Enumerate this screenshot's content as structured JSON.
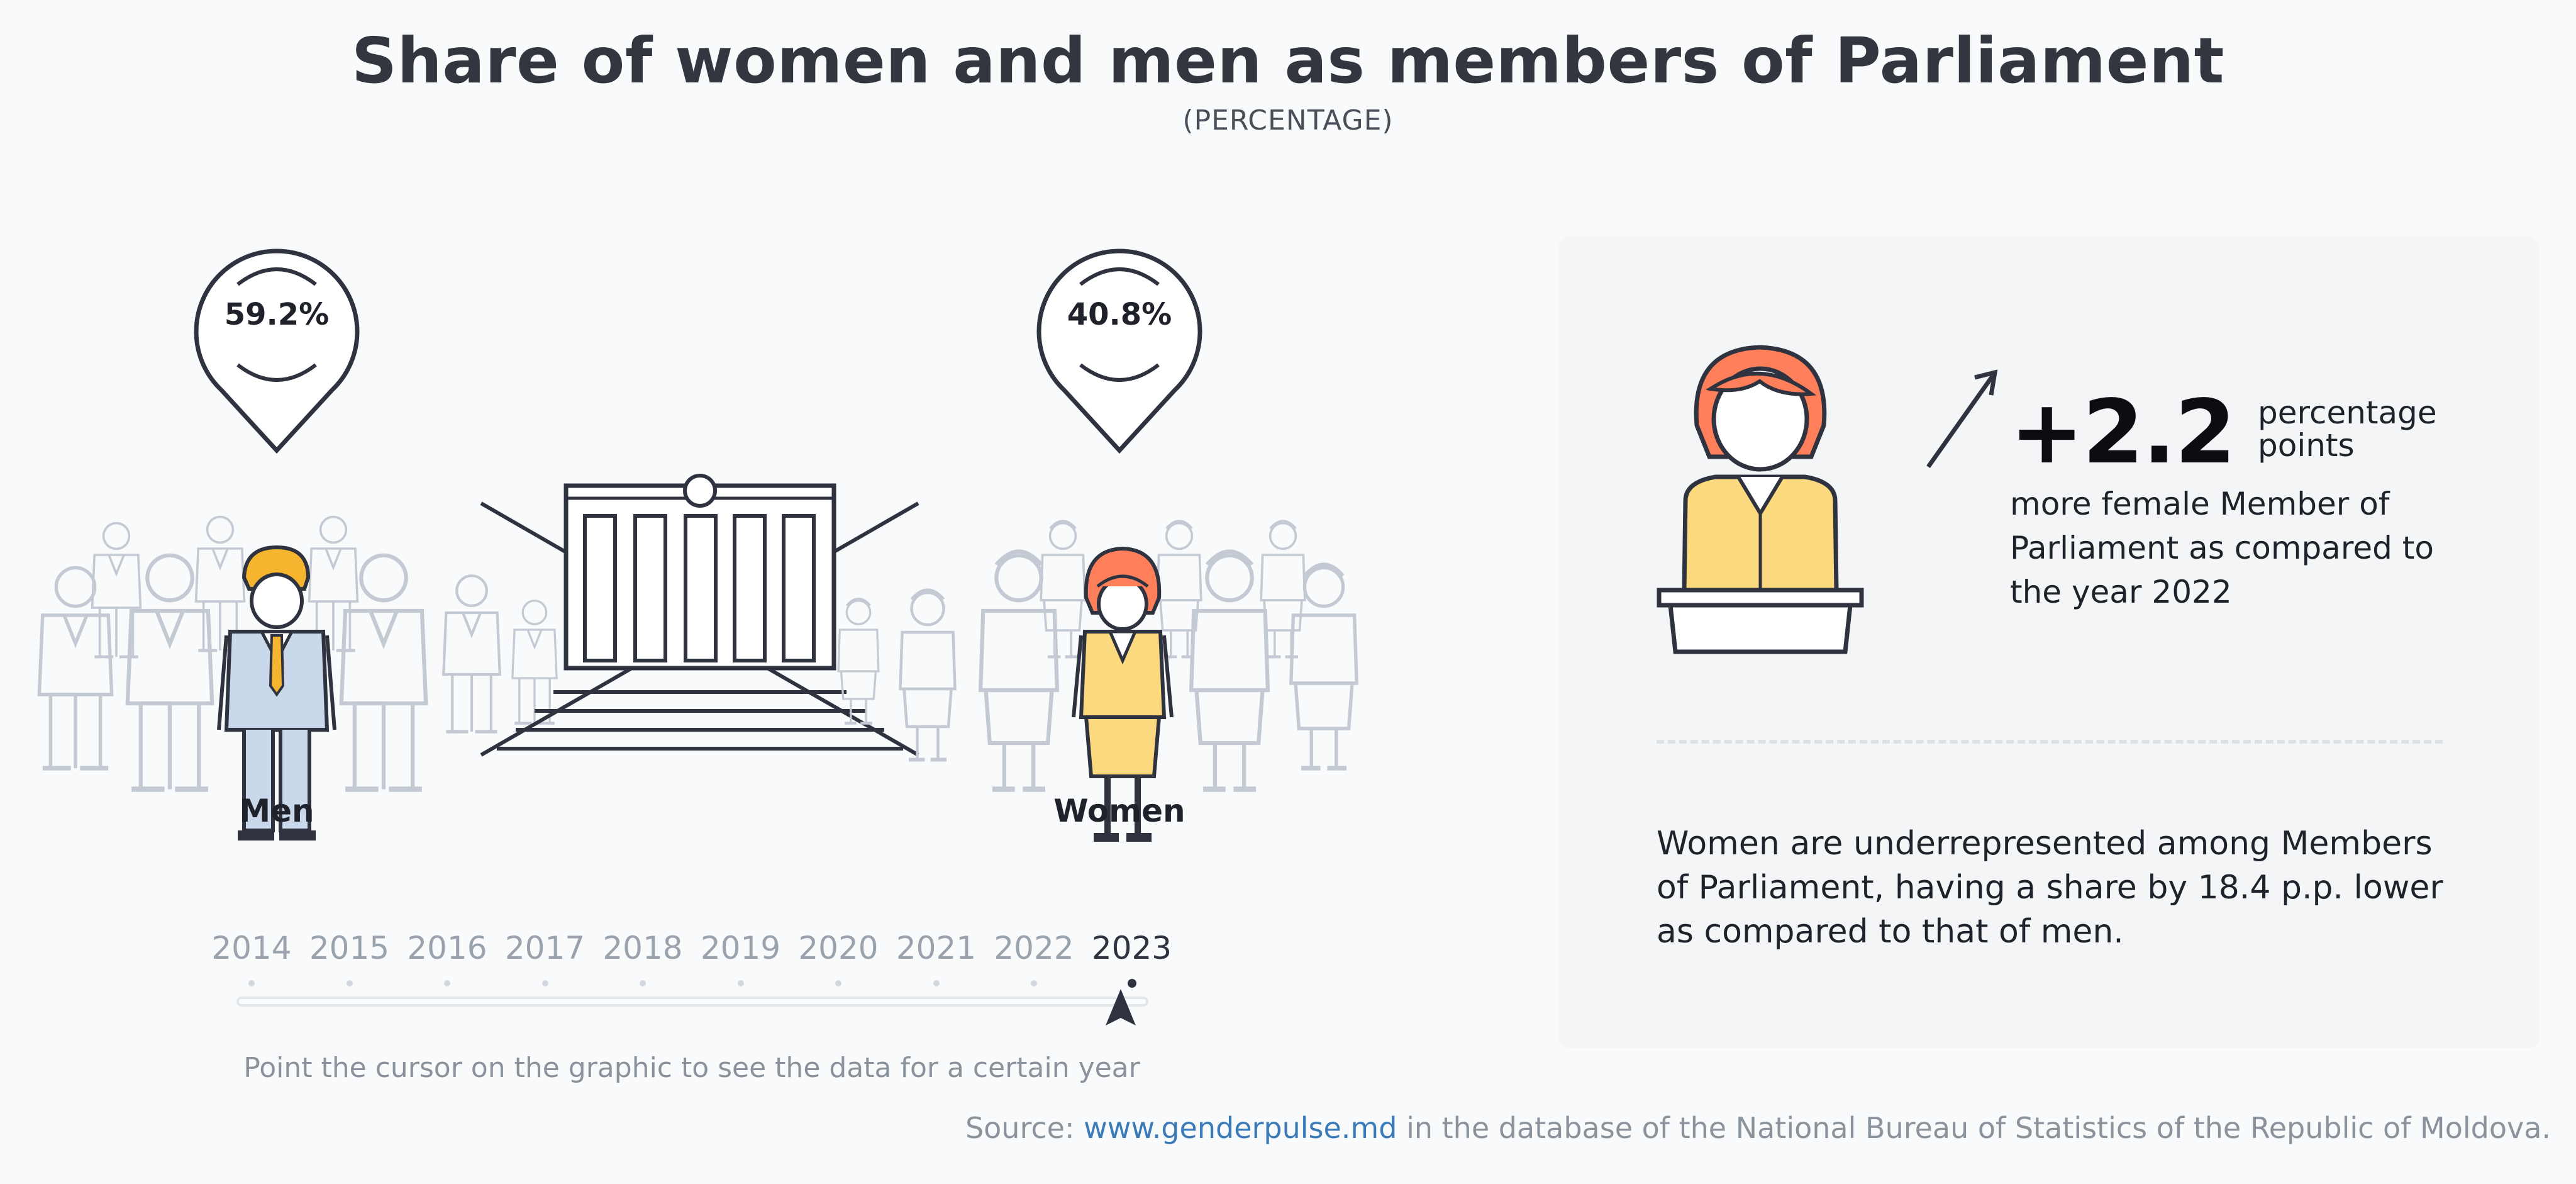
{
  "header": {
    "title": "Share of women and men as members of Parliament",
    "subtitle": "(PERCENTAGE)"
  },
  "men": {
    "label": "Men",
    "value": "59.2%"
  },
  "women": {
    "label": "Women",
    "value": "40.8%"
  },
  "timeline": {
    "years": [
      "2014",
      "2015",
      "2016",
      "2017",
      "2018",
      "2019",
      "2020",
      "2021",
      "2022",
      "2023"
    ],
    "selected": "2023",
    "hint": "Point the cursor on the graphic to see the data for a certain year"
  },
  "panel": {
    "change_value": "+2.2",
    "change_unit": "percentage points",
    "change_desc": "more female Member of Parliament as compared to the year 2022",
    "note": "Women are underrepresented among Members of Parliament, having a share by 18.4 p.p. lower as compared to that of men."
  },
  "source": {
    "prefix": "Source:",
    "link": "www.genderpulse.md",
    "suffix": "in the database of the National Bureau of Statistics of the Republic of Moldova."
  },
  "colors": {
    "accent_man_hair": "#f5b52f",
    "accent_man_suit": "#c9d8ea",
    "accent_woman_hair": "#ff7f5a",
    "accent_woman_suit": "#fbd97f",
    "outline": "#2f3340",
    "faded": "#c3cad3",
    "link": "#3b7ab8"
  },
  "icons": [
    "man-figure-icon",
    "woman-figure-icon",
    "parliament-building-icon",
    "speaker-podium-icon",
    "arrow-up-icon",
    "map-pin-icon"
  ]
}
